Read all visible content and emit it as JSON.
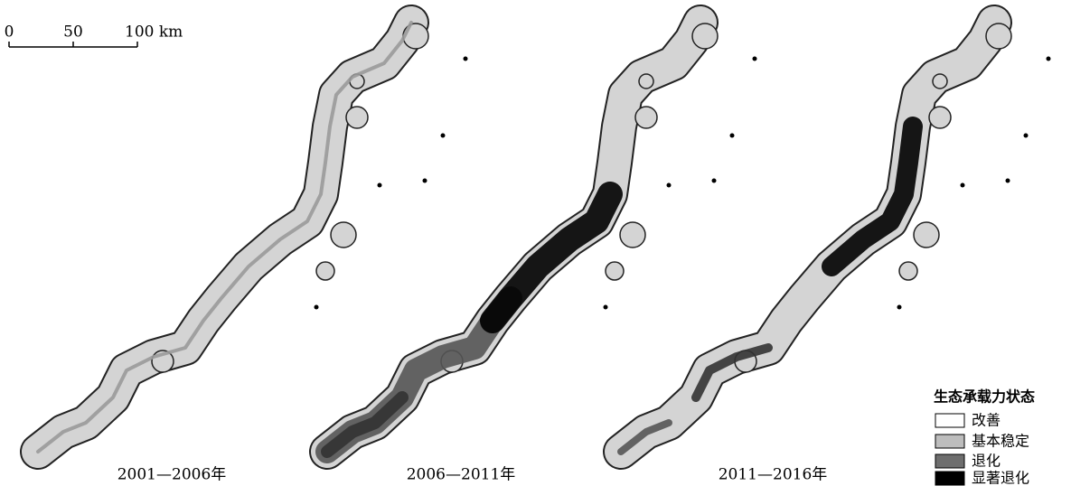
{
  "scale_bar": {
    "labels": [
      "0",
      "50",
      "100 km"
    ]
  },
  "panels": [
    {
      "title": "2001—2006年"
    },
    {
      "title": "2006—2011年"
    },
    {
      "title": "2011—2016年"
    }
  ],
  "legend": {
    "title": "生态承载力状态",
    "items": [
      {
        "label": "改善"
      },
      {
        "label": "基本稳定"
      },
      {
        "label": "退化"
      },
      {
        "label": "显著退化"
      }
    ]
  }
}
